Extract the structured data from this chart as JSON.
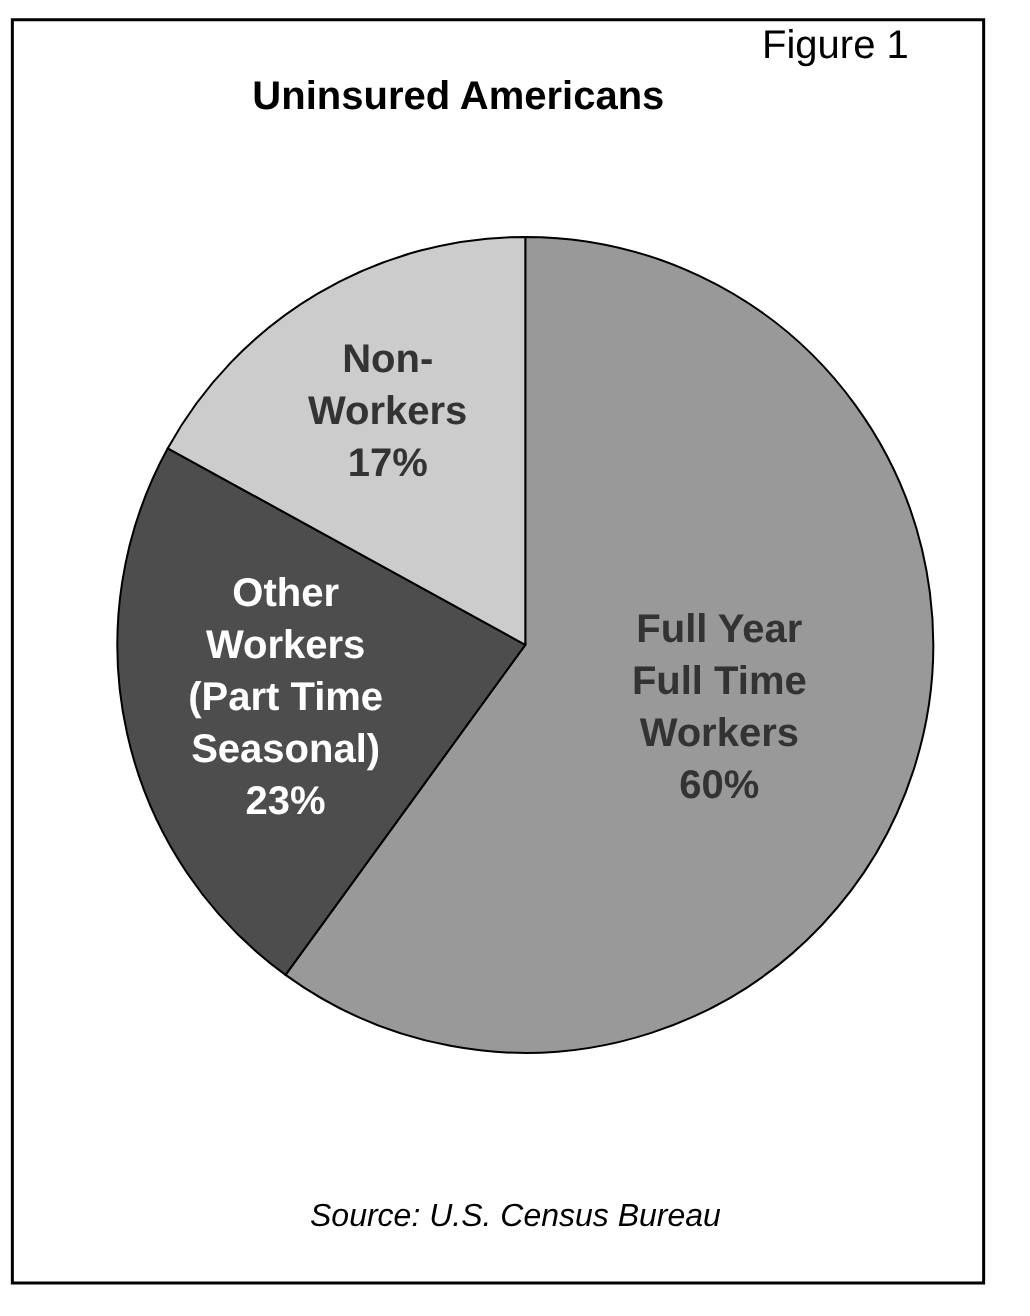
{
  "chart_data": {
    "type": "pie",
    "title": "Uninsured Americans",
    "categories": [
      "Full Year\nFull Time\nWorkers",
      "Other\nWorkers\n(Part Time\nSeasonal)",
      "Non-\nWorkers"
    ],
    "values": [
      60,
      23,
      17
    ],
    "value_labels": [
      "60%",
      "23%",
      "17%"
    ],
    "colors": [
      "#999999",
      "#4d4d4d",
      "#cccccc"
    ],
    "annotations": [
      "Figure 1",
      "Source: U.S. Census Bureau"
    ],
    "legend": false
  }
}
